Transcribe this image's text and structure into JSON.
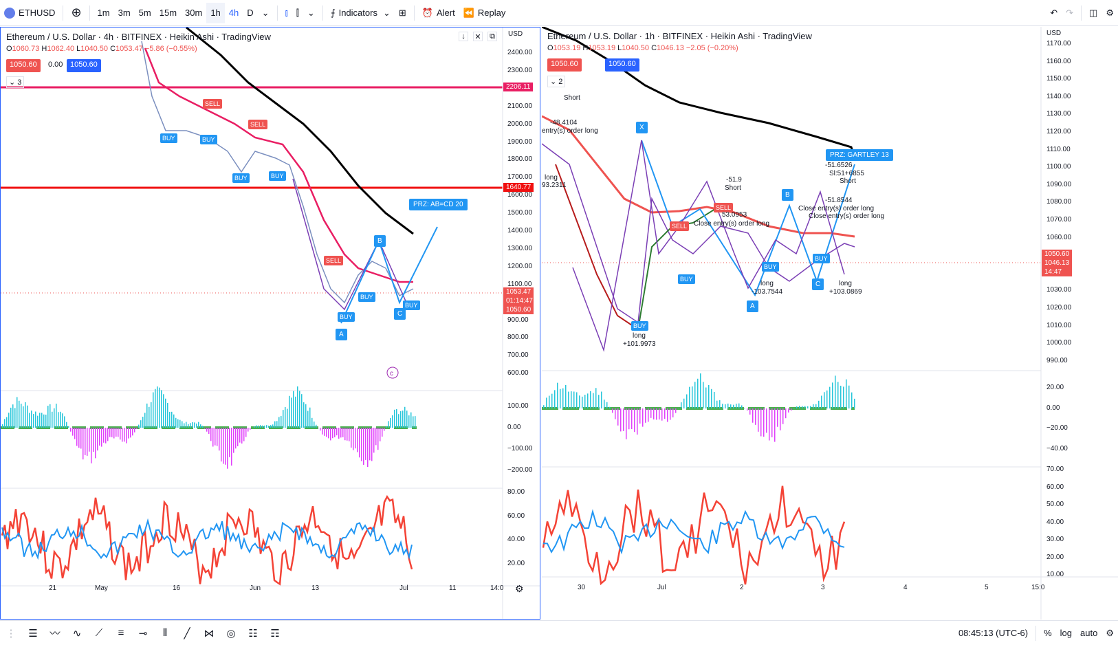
{
  "toolbar": {
    "symbol": "ETHUSD",
    "intervals": [
      "1m",
      "3m",
      "5m",
      "15m",
      "30m",
      "1h",
      "4h",
      "D"
    ],
    "indicators_label": "Indicators",
    "alert_label": "Alert",
    "replay_label": "Replay"
  },
  "left_chart": {
    "title": "Ethereum / U.S. Dollar · 4h · BITFINEX · Heikin Ashi · TradingView",
    "ohlc": {
      "o": "1060.73",
      "h": "1062.40",
      "l": "1040.50",
      "c": "1053.47",
      "chg": "−5.86 (−0.55%)"
    },
    "bid": "1050.60",
    "spread": "0.00",
    "ask": "1050.60",
    "indicator_count": "3",
    "currency": "USD",
    "price_ticks": [
      "2400.00",
      "2300.00",
      "2200.00",
      "2100.00",
      "2000.00",
      "1900.00",
      "1800.00",
      "1700.00",
      "1600.00",
      "1500.00",
      "1400.00",
      "1300.00",
      "1200.00",
      "1100.00",
      "1000.00",
      "900.00",
      "800.00",
      "700.00",
      "600.00"
    ],
    "hline_labels": [
      "2206.11",
      "1640.77"
    ],
    "last_price": "1053.47",
    "countdown": "01:14:47",
    "last_price2": "1050.60",
    "osc_ticks": [
      "100.00",
      "0.00",
      "−100.00",
      "−200.00"
    ],
    "rsi_ticks": [
      "80.00",
      "60.00",
      "40.00",
      "20.00"
    ],
    "time_ticks": [
      "21",
      "May",
      "16",
      "Jun",
      "13",
      "Jul",
      "11",
      "14:0"
    ],
    "pattern_label": "PRZ: AB=CD 20",
    "point_labels": [
      "A",
      "B",
      "C"
    ],
    "signal_sell": "SELL",
    "signal_buy": "BUY"
  },
  "right_chart": {
    "title": "Ethereum / U.S. Dollar · 1h · BITFINEX · Heikin Ashi · TradingView",
    "ohlc": {
      "o": "1053.19",
      "h": "1053.19",
      "l": "1040.50",
      "c": "1046.13",
      "chg": "−2.05 (−0.20%)"
    },
    "bid": "1050.60",
    "ask": "1050.60",
    "indicator_count": "2",
    "currency": "USD",
    "price_ticks": [
      "1170.00",
      "1160.00",
      "1150.00",
      "1140.00",
      "1130.00",
      "1120.00",
      "1110.00",
      "1100.00",
      "1090.00",
      "1080.00",
      "1070.00",
      "1060.00",
      "1050.00",
      "1040.00",
      "1030.00",
      "1020.00",
      "1010.00",
      "1000.00",
      "990.00"
    ],
    "price_tags": [
      "1050.60",
      "1046.13",
      "14:47"
    ],
    "osc_ticks": [
      "20.00",
      "0.00",
      "−20.00",
      "−40.00"
    ],
    "rsi_ticks": [
      "70.00",
      "60.00",
      "50.00",
      "40.00",
      "30.00",
      "20.00",
      "10.00"
    ],
    "time_ticks": [
      "30",
      "Jul",
      "2",
      "3",
      "4",
      "5",
      "15:0"
    ],
    "pattern_label": "PRZ: GARTLEY 13",
    "point_labels": [
      "X",
      "A",
      "B",
      "C"
    ],
    "annotations": [
      "Short",
      "-48.4104",
      "entry(s) order long",
      "long",
      "93.2311",
      "-51.9",
      "Short",
      "53.0953",
      "Close entry(s) order long",
      "long",
      "-103.7544",
      "long",
      "+101.9973",
      "-51.6526",
      "Sl:51+6855",
      "Short",
      "-51.8544",
      "Close entry(s) order long",
      "Close entry(s) order long",
      "long",
      "+103.0869"
    ],
    "signal_sell": "SELL",
    "signal_buy": "BUY"
  },
  "bottombar": {
    "time": "08:45:13 (UTC-6)",
    "percent": "%",
    "log": "log",
    "auto": "auto"
  }
}
